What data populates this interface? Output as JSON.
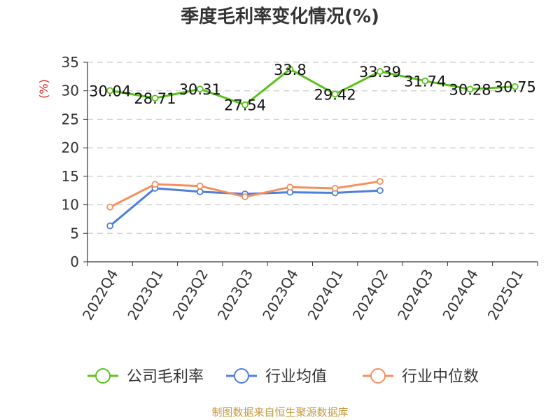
{
  "chart_data": {
    "type": "line",
    "title": "季度毛利率变化情况(%)",
    "ylabel": "(%)",
    "ylim": [
      0,
      35
    ],
    "yticks": [
      0,
      5,
      10,
      15,
      20,
      25,
      30,
      35
    ],
    "categories": [
      "2022Q4",
      "2023Q1",
      "2023Q2",
      "2023Q3",
      "2023Q4",
      "2024Q1",
      "2024Q2",
      "2024Q3",
      "2024Q4",
      "2025Q1"
    ],
    "grid": true,
    "legend_position": "bottom",
    "series": [
      {
        "name": "公司毛利率",
        "color": "#5ac21a",
        "values": [
          30.04,
          28.71,
          30.31,
          27.54,
          33.8,
          29.42,
          33.39,
          31.74,
          30.28,
          30.75
        ],
        "labels": [
          "30.04",
          "28.71",
          "30.31",
          "27.54",
          "33.8",
          "29.42",
          "33.39",
          "31.74",
          "30.28",
          "30.75"
        ]
      },
      {
        "name": "行业均值",
        "color": "#4d7fdd",
        "values": [
          6.3,
          12.9,
          12.3,
          11.9,
          12.2,
          12.1,
          12.5,
          null,
          null,
          null
        ]
      },
      {
        "name": "行业中位数",
        "color": "#f58f5c",
        "values": [
          9.6,
          13.6,
          13.3,
          11.4,
          13.1,
          12.9,
          14.1,
          null,
          null,
          null
        ]
      }
    ],
    "source": "制图数据来自恒生聚源数据库",
    "colors": {
      "ylabel": "#e02020",
      "source": "#c49a3c",
      "grid": "#cccccc",
      "axis": "#333333"
    }
  }
}
